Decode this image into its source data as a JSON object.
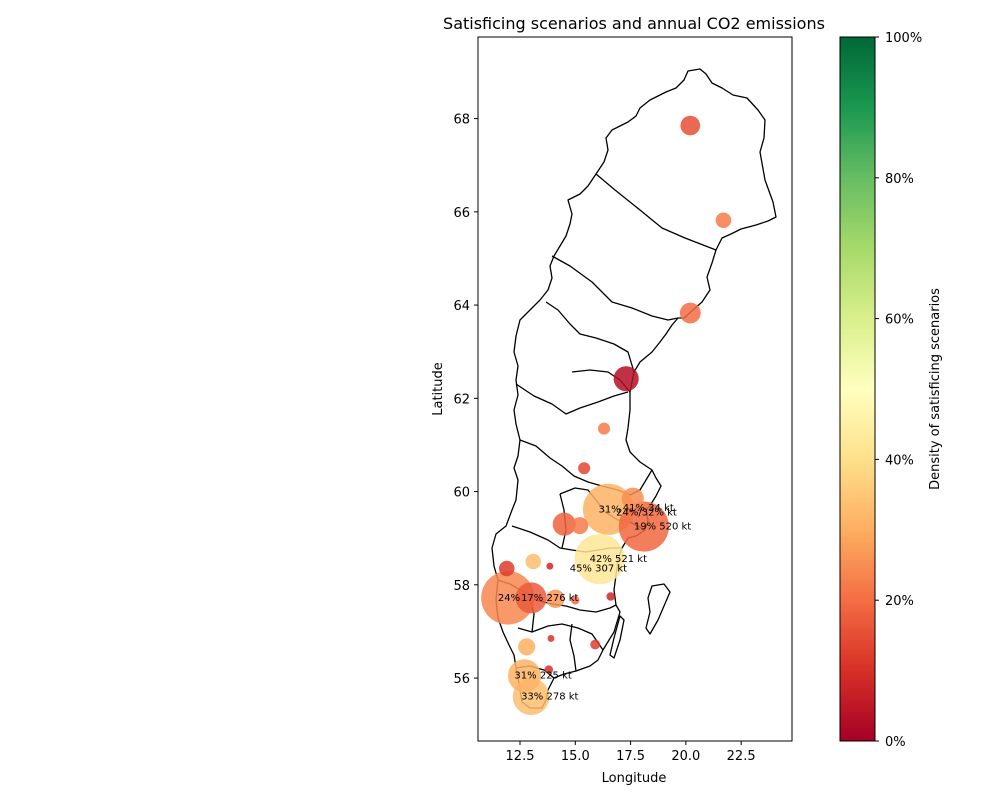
{
  "chart_data": {
    "type": "scatter",
    "title": "Satisficing scenarios and annual CO2 emissions",
    "xlabel": "Longitude",
    "ylabel": "Latitude",
    "xlim": [
      10.6,
      24.8
    ],
    "ylim": [
      54.65,
      69.75
    ],
    "xticks": [
      "12.5",
      "15.0",
      "17.5",
      "20.0",
      "22.5"
    ],
    "yticks": [
      "56",
      "58",
      "60",
      "62",
      "64",
      "66",
      "68"
    ],
    "colorbar": {
      "label": "Density of satisficing scenarios",
      "ticks": [
        "0%",
        "20%",
        "40%",
        "60%",
        "80%",
        "100%"
      ],
      "colormap": "RdYlGn"
    },
    "points": [
      {
        "lon": 20.2,
        "lat": 67.85,
        "share": 0.15,
        "emissions_kt": 80,
        "label": ""
      },
      {
        "lon": 21.7,
        "lat": 65.82,
        "share": 0.22,
        "emissions_kt": 50,
        "label": ""
      },
      {
        "lon": 20.2,
        "lat": 63.83,
        "share": 0.2,
        "emissions_kt": 90,
        "label": ""
      },
      {
        "lon": 17.3,
        "lat": 62.42,
        "share": 0.03,
        "emissions_kt": 130,
        "label": ""
      },
      {
        "lon": 16.3,
        "lat": 61.35,
        "share": 0.22,
        "emissions_kt": 30,
        "label": ""
      },
      {
        "lon": 15.4,
        "lat": 60.5,
        "share": 0.14,
        "emissions_kt": 30,
        "label": ""
      },
      {
        "lon": 16.5,
        "lat": 59.62,
        "share": 0.31,
        "emissions_kt": 540,
        "label": "31%"
      },
      {
        "lon": 17.6,
        "lat": 59.85,
        "share": 0.25,
        "emissions_kt": 100,
        "label": ""
      },
      {
        "lon": 14.5,
        "lat": 59.3,
        "share": 0.18,
        "emissions_kt": 110,
        "label": ""
      },
      {
        "lon": 15.2,
        "lat": 59.27,
        "share": 0.22,
        "emissions_kt": 60,
        "label": ""
      },
      {
        "lon": 18.1,
        "lat": 59.25,
        "share": 0.19,
        "emissions_kt": 520,
        "label": "19%   520 kt"
      },
      {
        "lon": 16.1,
        "lat": 58.55,
        "share": 0.42,
        "emissions_kt": 521,
        "label": "42%   521 kt"
      },
      {
        "lon": 13.1,
        "lat": 58.5,
        "share": 0.33,
        "emissions_kt": 50,
        "label": ""
      },
      {
        "lon": 13.85,
        "lat": 58.4,
        "share": 0.08,
        "emissions_kt": 10,
        "label": ""
      },
      {
        "lon": 11.9,
        "lat": 58.35,
        "share": 0.12,
        "emissions_kt": 50,
        "label": ""
      },
      {
        "lon": 11.95,
        "lat": 57.72,
        "share": 0.24,
        "emissions_kt": 590,
        "label": "24%"
      },
      {
        "lon": 13.0,
        "lat": 57.72,
        "share": 0.17,
        "emissions_kt": 200,
        "label": ""
      },
      {
        "lon": 14.1,
        "lat": 57.7,
        "share": 0.26,
        "emissions_kt": 70,
        "label": ""
      },
      {
        "lon": 15.0,
        "lat": 57.67,
        "share": 0.2,
        "emissions_kt": 15,
        "label": ""
      },
      {
        "lon": 16.6,
        "lat": 57.75,
        "share": 0.08,
        "emissions_kt": 15,
        "label": ""
      },
      {
        "lon": 12.8,
        "lat": 56.67,
        "share": 0.3,
        "emissions_kt": 60,
        "label": ""
      },
      {
        "lon": 13.9,
        "lat": 56.85,
        "share": 0.1,
        "emissions_kt": 10,
        "label": ""
      },
      {
        "lon": 15.9,
        "lat": 56.72,
        "share": 0.12,
        "emissions_kt": 20,
        "label": ""
      },
      {
        "lon": 12.7,
        "lat": 56.05,
        "share": 0.31,
        "emissions_kt": 225,
        "label": "31%  225 kt"
      },
      {
        "lon": 13.8,
        "lat": 56.18,
        "share": 0.1,
        "emissions_kt": 15,
        "label": ""
      },
      {
        "lon": 13.0,
        "lat": 55.6,
        "share": 0.33,
        "emissions_kt": 278,
        "label": "33%  278 kt"
      }
    ],
    "overlap_labels": [
      {
        "text": "41% 34 kt",
        "lon": 17.6,
        "lat": 59.65
      },
      {
        "text": "24%/32% kt",
        "lon": 17.3,
        "lat": 59.55
      },
      {
        "text": "45% 307 kt",
        "lon": 15.2,
        "lat": 58.35
      },
      {
        "text": "17%  276 kt",
        "lon": 13.0,
        "lat": 57.72
      }
    ]
  }
}
